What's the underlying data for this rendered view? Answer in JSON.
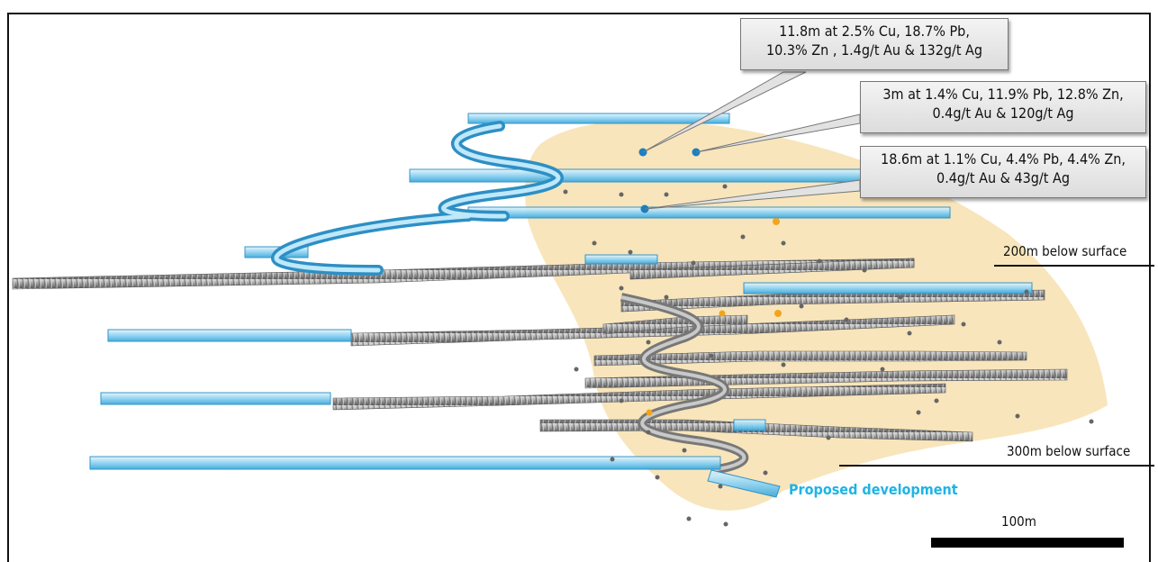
{
  "callouts": [
    {
      "line1": "11.8m at 2.5% Cu, 18.7% Pb,",
      "line2": "10.3% Zn , 1.4g/t Au & 132g/t Ag"
    },
    {
      "line1": "3m at 1.4% Cu, 11.9% Pb, 12.8% Zn,",
      "line2": "0.4g/t Au & 120g/t Ag"
    },
    {
      "line1": "18.6m at 1.1% Cu, 4.4% Pb, 4.4% Zn,",
      "line2": "0.4g/t Au & 43g/t Ag"
    }
  ],
  "depth_labels": {
    "d200": "200m below surface",
    "d300": "300m below surface"
  },
  "proposed_label": "Proposed development",
  "scale_label": "100m",
  "colors": {
    "orebody": "#f7e2b4",
    "proposed": "#1eb4e6",
    "existing": "#9a9a9a",
    "drill_point": "#666666",
    "highlight_point": "#1a7fc4",
    "gold_point": "#f2a51c"
  }
}
